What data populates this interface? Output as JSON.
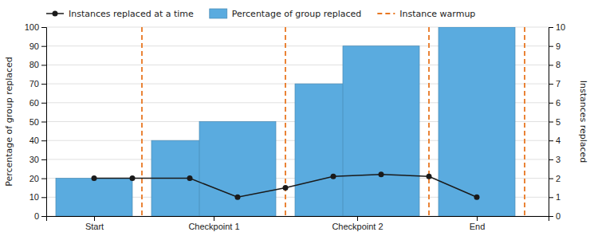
{
  "chart_data": {
    "type": "bar",
    "xlim": [
      0,
      10.5
    ],
    "xticks": [
      {
        "value": 1,
        "label": "Start"
      },
      {
        "value": 3.5,
        "label": "Checkpoint 1"
      },
      {
        "value": 6.5,
        "label": "Checkpoint 2"
      },
      {
        "value": 9,
        "label": "End"
      }
    ],
    "ylabel": "Percentage of group replaced",
    "y2label": "Instances replaced",
    "ylim": [
      0,
      100
    ],
    "yticks": [
      0,
      10,
      20,
      30,
      40,
      50,
      60,
      70,
      80,
      90,
      100
    ],
    "y2lim": [
      0,
      10
    ],
    "y2ticks": [
      0,
      1,
      2,
      3,
      4,
      5,
      6,
      7,
      8,
      9,
      10
    ],
    "grid": true,
    "legend": "upper left",
    "series": [
      {
        "name": "Instances replaced at a time",
        "type": "line",
        "axis": "y2",
        "color": "#1a1a1a",
        "marker": "circle",
        "x": [
          1,
          1.8,
          3,
          4,
          5,
          6,
          7,
          8,
          9
        ],
        "values": [
          2.0,
          2.0,
          2.0,
          1.0,
          1.5,
          2.1,
          2.2,
          2.1,
          1.0
        ]
      },
      {
        "name": "Percentage of group replaced",
        "type": "bar",
        "color": "#5aabdf",
        "x": [
          1,
          3,
          4,
          6,
          7,
          9
        ],
        "values": [
          20,
          40,
          50,
          70,
          90,
          100
        ]
      },
      {
        "name": "Instance warmup",
        "type": "vline",
        "color": "#e87722",
        "line_style": "dashed",
        "x": [
          2,
          5,
          8,
          10
        ]
      }
    ]
  }
}
